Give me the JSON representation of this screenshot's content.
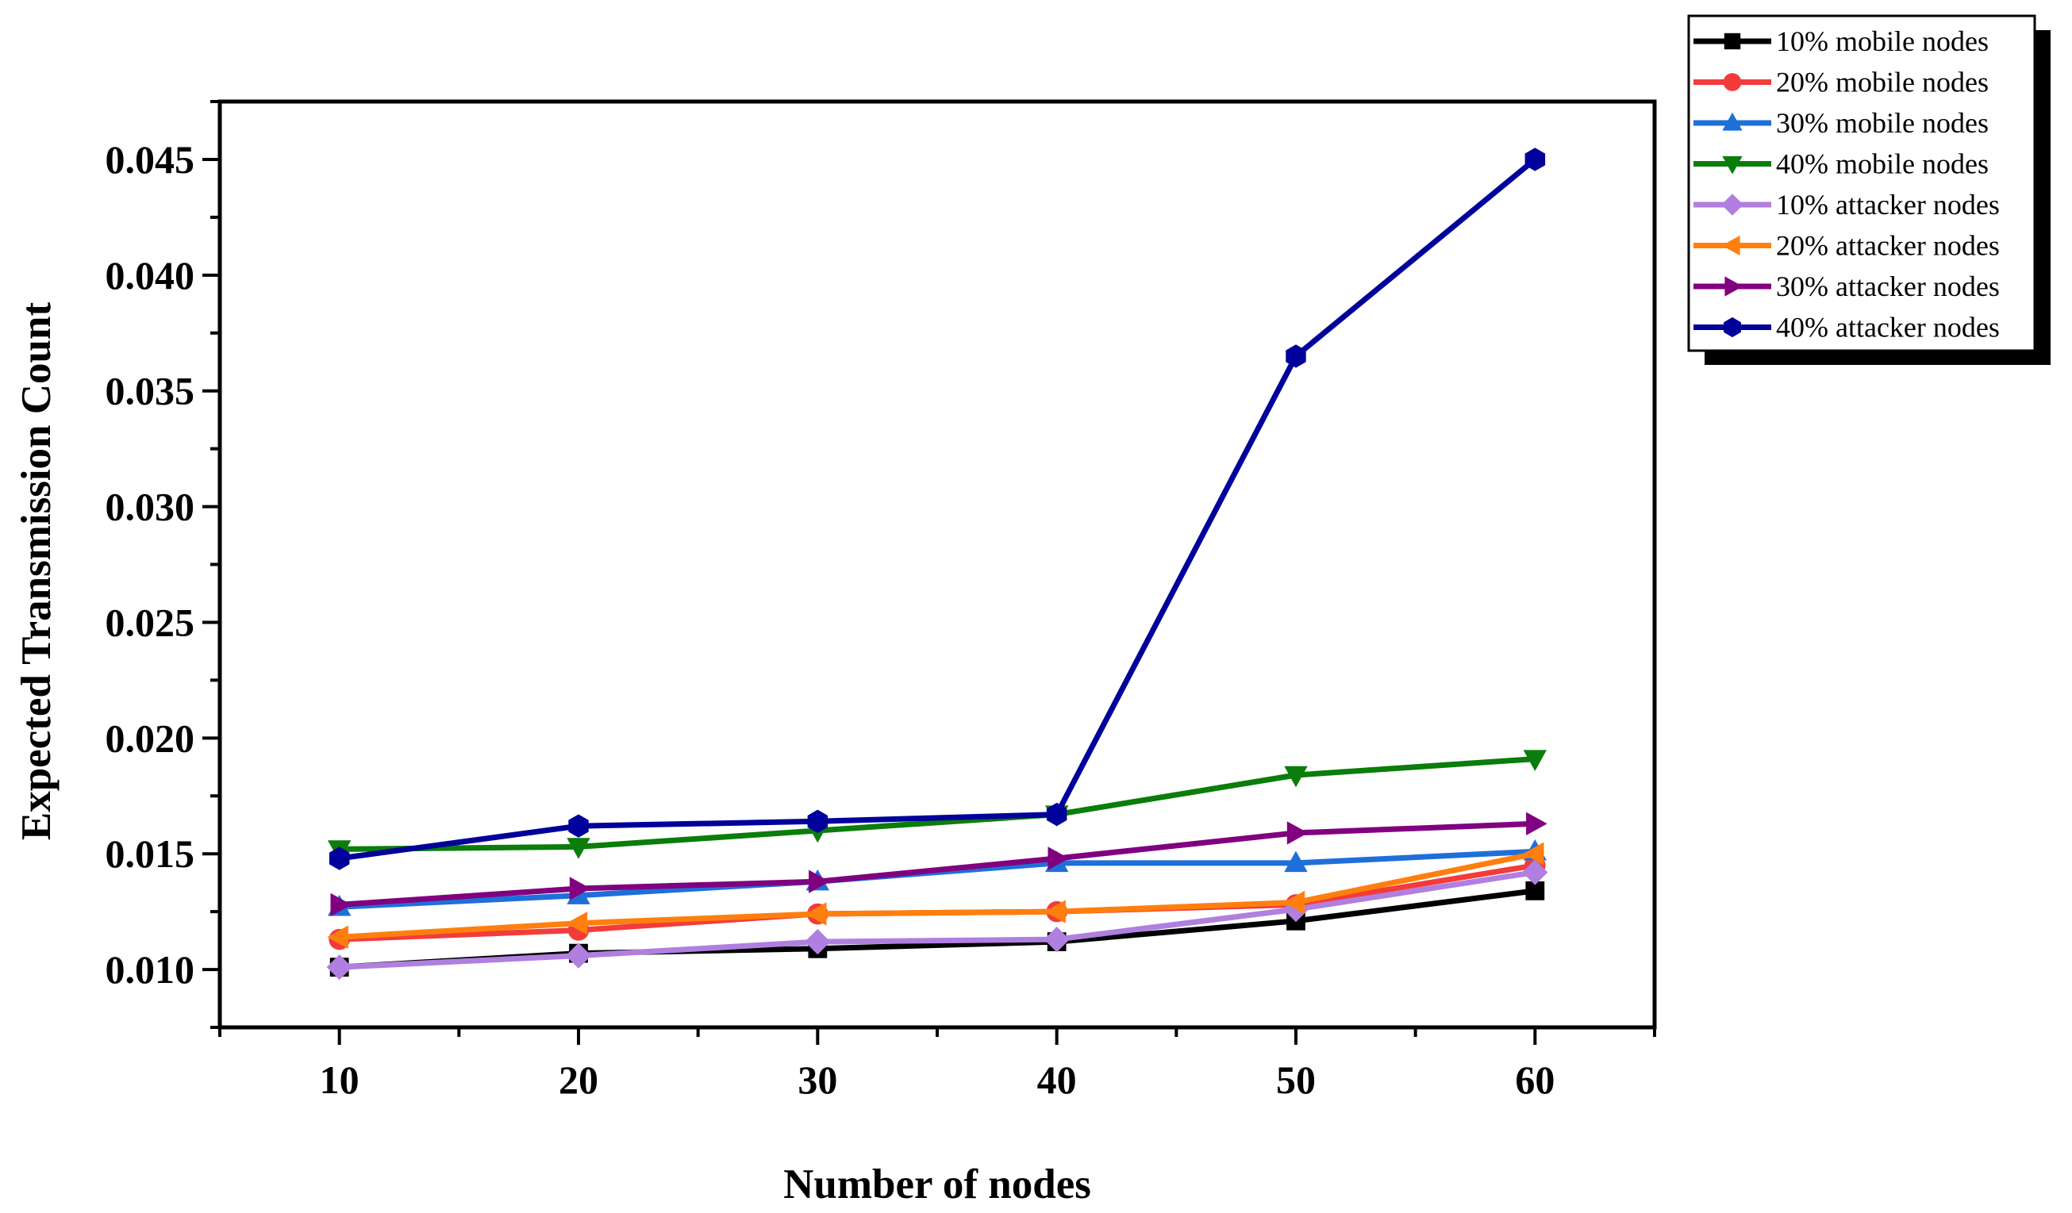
{
  "chart_data": {
    "type": "line",
    "xlabel": "Number of nodes",
    "ylabel": "Expected Transmission Count",
    "x": [
      10,
      20,
      30,
      40,
      50,
      60
    ],
    "xlim": [
      5,
      65
    ],
    "ylim": [
      0.0075,
      0.0475
    ],
    "xticks": [
      10,
      20,
      30,
      40,
      50,
      60
    ],
    "yticks": [
      0.01,
      0.015,
      0.02,
      0.025,
      0.03,
      0.035,
      0.04,
      0.045
    ],
    "ytick_labels": [
      "0.010",
      "0.015",
      "0.020",
      "0.025",
      "0.030",
      "0.035",
      "0.040",
      "0.045"
    ],
    "legend_position": "outside-top-right",
    "grid": false,
    "series": [
      {
        "name": "10% mobile nodes",
        "color": "#000000",
        "marker": "square",
        "values": [
          0.0101,
          0.0107,
          0.0109,
          0.0112,
          0.0121,
          0.0134
        ]
      },
      {
        "name": "20% mobile nodes",
        "color": "#f23c3c",
        "marker": "circle",
        "values": [
          0.0113,
          0.0117,
          0.0124,
          0.0125,
          0.0128,
          0.0145
        ]
      },
      {
        "name": "30% mobile nodes",
        "color": "#1f6fd9",
        "marker": "triangle-up",
        "values": [
          0.0127,
          0.0132,
          0.0138,
          0.0146,
          0.0146,
          0.0151
        ]
      },
      {
        "name": "40% mobile nodes",
        "color": "#0a7d0a",
        "marker": "triangle-down",
        "values": [
          0.0152,
          0.0153,
          0.016,
          0.0167,
          0.0184,
          0.0191
        ]
      },
      {
        "name": "10% attacker nodes",
        "color": "#b07fe0",
        "marker": "diamond",
        "values": [
          0.0101,
          0.0106,
          0.0112,
          0.0113,
          0.0126,
          0.0142
        ]
      },
      {
        "name": "20% attacker nodes",
        "color": "#ff7f0e",
        "marker": "triangle-left",
        "values": [
          0.0114,
          0.012,
          0.0124,
          0.0125,
          0.0129,
          0.015
        ]
      },
      {
        "name": "30% attacker nodes",
        "color": "#800080",
        "marker": "triangle-right",
        "values": [
          0.0128,
          0.0135,
          0.0138,
          0.0148,
          0.0159,
          0.0163
        ]
      },
      {
        "name": "40% attacker nodes",
        "color": "#00009b",
        "marker": "hexagon",
        "values": [
          0.0148,
          0.0162,
          0.0164,
          0.0167,
          0.0365,
          0.045
        ]
      }
    ]
  }
}
